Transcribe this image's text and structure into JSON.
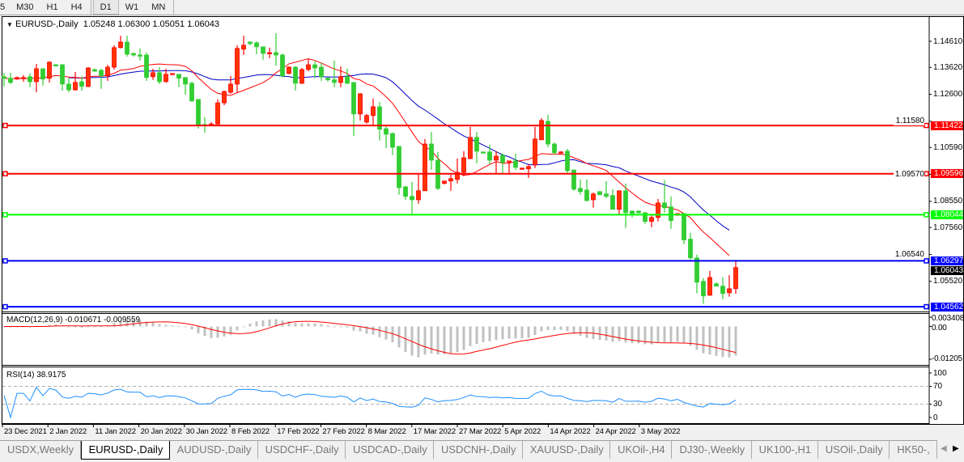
{
  "toolbar": {
    "timeframes": [
      "5",
      "M30",
      "H1",
      "H4",
      "D1",
      "W1",
      "MN"
    ],
    "active": "D1"
  },
  "chart": {
    "header": "EURUSD-,Daily  1.05248 1.06300 1.05051 1.06043",
    "symbol": "EURUSD-,Daily",
    "ohlc": "1.05248 1.06300 1.05051 1.06043",
    "current_price": "1.06043",
    "price_ticks": [
      "1.14610",
      "1.13620",
      "1.12600",
      "1.11580",
      "1.10590",
      "1.09570",
      "1.08550",
      "1.07560",
      "1.06540",
      "1.05520"
    ],
    "hlines": [
      {
        "price": "1.11422",
        "color": "#ff0000"
      },
      {
        "price": "1.09596",
        "color": "#ff0000"
      },
      {
        "price": "1.08044",
        "color": "#00ff00"
      },
      {
        "price": "1.06297",
        "color": "#0000ff"
      },
      {
        "price": "1.04562",
        "color": "#0000ff"
      }
    ],
    "colors": {
      "bull": "#ff3300",
      "bull_outline": "#ff0000",
      "bear": "#32cd32",
      "ma_fast": "#ff0000",
      "ma_slow": "#0000c8",
      "macd_hist": "#c0c0c0",
      "macd_signal": "#ff0000",
      "rsi": "#1e90ff"
    },
    "x_labels": [
      "23 Dec 2021",
      "2 Jan 2022",
      "11 Jan 2022",
      "20 Jan 2022",
      "30 Jan 2022",
      "8 Feb 2022",
      "17 Feb 2022",
      "27 Feb 2022",
      "8 Mar 2022",
      "17 Mar 2022",
      "27 Mar 2022",
      "5 Apr 2022",
      "14 Apr 2022",
      "24 Apr 2022",
      "3 May 2022"
    ],
    "macd": {
      "label": "MACD(12,26,9) -0.010671 -0.009559",
      "ticks": [
        "0.003408",
        "0.00",
        "-0.01205"
      ]
    },
    "rsi": {
      "label": "RSI(14) 38.9175",
      "ticks": [
        "100",
        "70",
        "30",
        "0"
      ]
    }
  },
  "chart_data": {
    "type": "candlestick",
    "title": "EURUSD-,Daily",
    "ylim": [
      1.044,
      1.156
    ],
    "candle_format": [
      "open",
      "high",
      "low",
      "close"
    ],
    "candles": [
      [
        1.1327,
        1.1342,
        1.129,
        1.1321
      ],
      [
        1.1321,
        1.1342,
        1.1299,
        1.1305
      ],
      [
        1.1318,
        1.1327,
        1.1315,
        1.1324
      ],
      [
        1.1321,
        1.1333,
        1.1308,
        1.1324
      ],
      [
        1.1327,
        1.1339,
        1.1287,
        1.1308
      ],
      [
        1.1308,
        1.1375,
        1.1268,
        1.1357
      ],
      [
        1.1357,
        1.1357,
        1.1293,
        1.1318
      ],
      [
        1.1321,
        1.1385,
        1.1305,
        1.1382
      ],
      [
        1.1372,
        1.1375,
        1.1369,
        1.1371
      ],
      [
        1.1372,
        1.1375,
        1.1274,
        1.1299
      ],
      [
        1.1299,
        1.1321,
        1.1268,
        1.1277
      ],
      [
        1.1277,
        1.1345,
        1.1274,
        1.1305
      ],
      [
        1.1308,
        1.133,
        1.1274,
        1.129
      ],
      [
        1.129,
        1.1363,
        1.1287,
        1.136
      ],
      [
        1.1354,
        1.1357,
        1.1345,
        1.1348
      ],
      [
        1.1351,
        1.1357,
        1.1281,
        1.133
      ],
      [
        1.133,
        1.1372,
        1.1311,
        1.1363
      ],
      [
        1.1363,
        1.1446,
        1.1354,
        1.1437
      ],
      [
        1.1437,
        1.1482,
        1.1434,
        1.1458
      ],
      [
        1.1458,
        1.1482,
        1.1403,
        1.1412
      ],
      [
        1.1415,
        1.1418,
        1.1403,
        1.1409
      ],
      [
        1.1409,
        1.1434,
        1.1388,
        1.1407
      ],
      [
        1.1409,
        1.1418,
        1.1311,
        1.1324
      ],
      [
        1.1327,
        1.1357,
        1.1315,
        1.1342
      ],
      [
        1.1342,
        1.1363,
        1.1299,
        1.1308
      ],
      [
        1.1308,
        1.1357,
        1.1305,
        1.1336
      ],
      [
        1.1336,
        1.1339,
        1.1336,
        1.1339
      ],
      [
        1.1336,
        1.1336,
        1.1287,
        1.1321
      ],
      [
        1.1324,
        1.1324,
        1.1259,
        1.1299
      ],
      [
        1.1302,
        1.1308,
        1.1232,
        1.1235
      ],
      [
        1.1241,
        1.1241,
        1.113,
        1.1142
      ],
      [
        1.1146,
        1.1174,
        1.1115,
        1.1143
      ],
      [
        1.1145,
        1.1155,
        1.1142,
        1.1148
      ],
      [
        1.1148,
        1.1241,
        1.1142,
        1.1228
      ],
      [
        1.1228,
        1.1274,
        1.1219,
        1.1271
      ],
      [
        1.1268,
        1.133,
        1.1262,
        1.1299
      ],
      [
        1.1299,
        1.1446,
        1.1265,
        1.1434
      ],
      [
        1.1431,
        1.1482,
        1.1409,
        1.1446
      ],
      [
        1.1458,
        1.1461,
        1.1446,
        1.1452
      ],
      [
        1.1455,
        1.1461,
        1.1412,
        1.144
      ],
      [
        1.144,
        1.144,
        1.1391,
        1.1415
      ],
      [
        1.1415,
        1.1437,
        1.1397,
        1.1418
      ],
      [
        1.1418,
        1.1492,
        1.1369,
        1.1409
      ],
      [
        1.1409,
        1.1415,
        1.1324,
        1.133
      ],
      [
        1.1339,
        1.1366,
        1.1336,
        1.1363
      ],
      [
        1.1363,
        1.1366,
        1.1274,
        1.1302
      ],
      [
        1.1302,
        1.136,
        1.1299,
        1.1354
      ],
      [
        1.1354,
        1.1394,
        1.1348,
        1.1372
      ],
      [
        1.1372,
        1.1385,
        1.1321,
        1.136
      ],
      [
        1.1363,
        1.1379,
        1.1311,
        1.1327
      ],
      [
        1.1321,
        1.1324,
        1.1308,
        1.1315
      ],
      [
        1.1315,
        1.1388,
        1.1287,
        1.1305
      ],
      [
        1.1305,
        1.1366,
        1.1287,
        1.1327
      ],
      [
        1.1327,
        1.1357,
        1.1299,
        1.1302
      ],
      [
        1.1305,
        1.1305,
        1.1103,
        1.1186
      ],
      [
        1.1186,
        1.1265,
        1.1161,
        1.1262
      ],
      [
        1.1155,
        1.1186,
        1.1149,
        1.118
      ],
      [
        1.118,
        1.1244,
        1.1142,
        1.1213
      ],
      [
        1.1213,
        1.1232,
        1.1085,
        1.1128
      ],
      [
        1.113,
        1.1145,
        1.1057,
        1.1109
      ],
      [
        1.1112,
        1.1115,
        1.103,
        1.106
      ],
      [
        1.1063,
        1.1063,
        1.088,
        1.0907
      ],
      [
        1.091,
        1.0913,
        1.0861,
        1.0874
      ],
      [
        1.0874,
        1.0929,
        1.0806,
        1.0861
      ],
      [
        1.0861,
        1.0956,
        1.0846,
        1.0895
      ],
      [
        1.0895,
        1.1091,
        1.0895,
        1.1072
      ],
      [
        1.1072,
        1.1118,
        1.0974,
        1.1011
      ],
      [
        1.1011,
        1.1042,
        1.0898,
        1.0904
      ],
      [
        1.0923,
        1.0932,
        1.0919,
        1.0932
      ],
      [
        1.0932,
        1.0956,
        1.0895,
        1.0941
      ],
      [
        1.0938,
        1.1017,
        1.0923,
        1.0965
      ],
      [
        1.0965,
        1.1045,
        1.095,
        1.102
      ],
      [
        1.1017,
        1.1137,
        1.1014,
        1.1097
      ],
      [
        1.1097,
        1.1118,
        1.0999,
        1.1045
      ],
      [
        1.1042,
        1.1042,
        1.1039,
        1.104
      ],
      [
        1.1042,
        1.1069,
        1.0996,
        1.1011
      ],
      [
        1.1011,
        1.1045,
        1.0962,
        1.1026
      ],
      [
        1.1029,
        1.1036,
        1.0959,
        1.1002
      ],
      [
        1.1005,
        1.1008,
        1.0959,
        1.1008
      ],
      [
        1.1008,
        1.1036,
        1.0974,
        1.0984
      ],
      [
        1.0978,
        1.0981,
        1.0974,
        1.0981
      ],
      [
        1.0978,
        1.0996,
        1.0944,
        1.0987
      ],
      [
        1.0993,
        1.1137,
        1.0981,
        1.1091
      ],
      [
        1.1088,
        1.117,
        1.1088,
        1.1161
      ],
      [
        1.1158,
        1.1183,
        1.106,
        1.1072
      ],
      [
        1.1072,
        1.1078,
        1.1033,
        1.1039
      ],
      [
        1.1039,
        1.1045,
        1.1039,
        1.1042
      ],
      [
        1.1045,
        1.1054,
        1.0959,
        1.0971
      ],
      [
        1.0974,
        1.0974,
        1.0895,
        1.0901
      ],
      [
        1.0904,
        1.0938,
        1.088,
        1.0892
      ],
      [
        1.0898,
        1.0938,
        1.0855,
        1.0858
      ],
      [
        1.0861,
        1.0889,
        1.0831,
        1.0883
      ],
      [
        1.0892,
        1.0892,
        1.088,
        1.088
      ],
      [
        1.0883,
        1.0932,
        1.0867,
        1.0874
      ],
      [
        1.0877,
        1.0901,
        1.0825,
        1.0825
      ],
      [
        1.0825,
        1.0895,
        1.0806,
        1.0895
      ],
      [
        1.0895,
        1.0923,
        1.0754,
        1.0812
      ],
      [
        1.0818,
        1.0821,
        1.0794,
        1.0809
      ],
      [
        1.0818,
        1.0821,
        1.0809,
        1.0812
      ],
      [
        1.0812,
        1.0815,
        1.0769,
        1.0779
      ],
      [
        1.0779,
        1.0806,
        1.0757,
        1.0794
      ],
      [
        1.0794,
        1.0864,
        1.0779,
        1.0849
      ],
      [
        1.0849,
        1.0935,
        1.0812,
        1.0831
      ],
      [
        1.0834,
        1.0874,
        1.0751,
        1.0782
      ],
      [
        1.0803,
        1.0809,
        1.08,
        1.0809
      ],
      [
        1.0809,
        1.0809,
        1.0693,
        1.0709
      ],
      [
        1.0712,
        1.0736,
        1.0635,
        1.0641
      ],
      [
        1.0641,
        1.0653,
        1.0507,
        1.0549
      ],
      [
        1.0552,
        1.0565,
        1.0467,
        1.0497
      ],
      [
        1.05,
        1.0592,
        1.0497,
        1.0567
      ],
      [
        1.0543,
        1.0549,
        1.0534,
        1.0534
      ],
      [
        1.0534,
        1.0567,
        1.0485,
        1.0506
      ],
      [
        1.0509,
        1.0576,
        1.0494,
        1.0524
      ],
      [
        1.05248,
        1.063,
        1.05051,
        1.06043
      ]
    ],
    "indicators": {
      "macd": {
        "name": "MACD(12,26,9)",
        "main": -0.010671,
        "signal": -0.009559,
        "ylim": [
          -0.012054,
          0.003408
        ]
      },
      "rsi": {
        "name": "RSI(14)",
        "value": 38.9175,
        "levels": [
          70,
          30
        ],
        "ylim": [
          0,
          100
        ]
      }
    }
  },
  "tabs": [
    "USDX,Weekly",
    "EURUSD-,Daily",
    "AUDUSD-,Daily",
    "USDCHF-,Daily",
    "USDCAD-,Daily",
    "USDCNH-,Daily",
    "XAUUSD-,Daily",
    "UKOil-,H4",
    "DJ30-,Weekly",
    "UK100-,H1",
    "USOil-,Daily",
    "HK50-,"
  ],
  "active_tab": "EURUSD-,Daily"
}
